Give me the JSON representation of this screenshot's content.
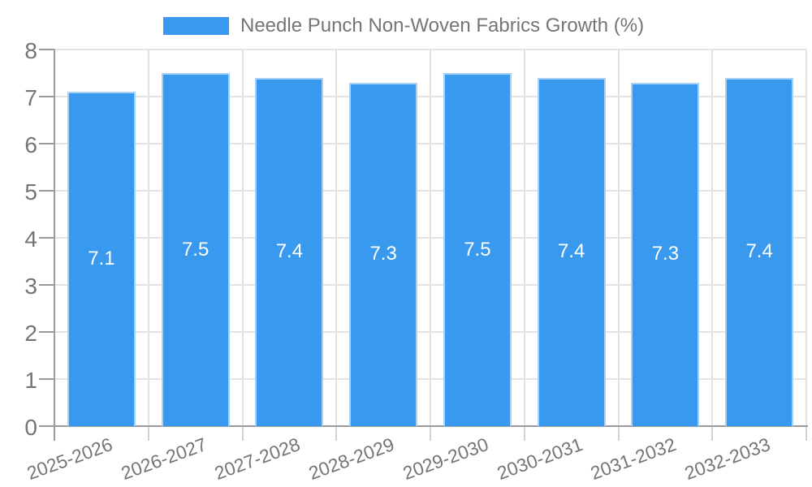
{
  "legend": {
    "items": [
      {
        "label": "Needle Punch Non-Woven Fabrics Growth (%)",
        "color": "#3999ee"
      }
    ]
  },
  "chart_data": {
    "type": "bar",
    "title": "Needle Punch Non-Woven Fabrics Growth (%)",
    "xlabel": "",
    "ylabel": "",
    "categories": [
      "2025-2026",
      "2026-2027",
      "2027-2028",
      "2028-2029",
      "2029-2030",
      "2030-2031",
      "2031-2032",
      "2032-2033"
    ],
    "values": [
      7.1,
      7.5,
      7.4,
      7.3,
      7.5,
      7.4,
      7.3,
      7.4
    ],
    "bar_value_labels": [
      "7.1",
      "7.5",
      "7.4",
      "7.3",
      "7.5",
      "7.4",
      "7.3",
      "7.4"
    ],
    "ylim": [
      0,
      8
    ],
    "ytick_step": 1,
    "ytick_labels": [
      "0",
      "1",
      "2",
      "3",
      "4",
      "5",
      "6",
      "7",
      "8"
    ],
    "grid": true,
    "legend_position": "top",
    "colors": {
      "bar_fill": "#3999ee",
      "bar_border": "#a5d2f6",
      "axis_line": "#9a9a9a",
      "gridline": "#e3e3e3",
      "minor_tick": "#d2d2d2",
      "tick_label": "#757575",
      "value_label": "#ffffff"
    }
  }
}
